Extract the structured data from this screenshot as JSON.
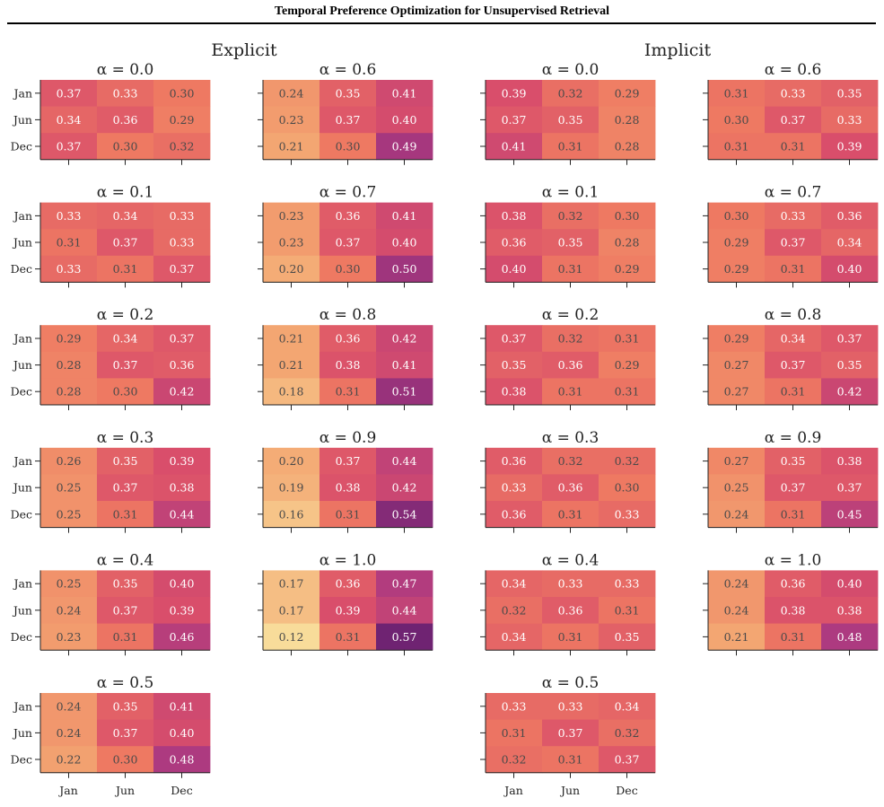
{
  "title": "Temporal Preference Optimization for Unsupervised Retrieval",
  "chart_data": {
    "type": "heatmap",
    "title": "Temporal Preference Optimization for Unsupervised Retrieval",
    "row_labels": [
      "Jan",
      "Jun",
      "Dec"
    ],
    "col_labels": [
      "Jan",
      "Jun",
      "Dec"
    ],
    "colormap": [
      "#f8dc9a",
      "#f3a672",
      "#ee7962",
      "#d94e6b",
      "#ad3a80",
      "#6f2372"
    ],
    "value_range": [
      0.12,
      0.57
    ],
    "groups": [
      {
        "name": "Explicit",
        "panels": [
          {
            "label": "α = 0.0",
            "values": [
              [
                0.37,
                0.33,
                0.3
              ],
              [
                0.34,
                0.36,
                0.29
              ],
              [
                0.37,
                0.3,
                0.32
              ]
            ]
          },
          {
            "label": "α = 0.1",
            "values": [
              [
                0.33,
                0.34,
                0.33
              ],
              [
                0.31,
                0.37,
                0.33
              ],
              [
                0.33,
                0.31,
                0.37
              ]
            ]
          },
          {
            "label": "α = 0.2",
            "values": [
              [
                0.29,
                0.34,
                0.37
              ],
              [
                0.28,
                0.37,
                0.36
              ],
              [
                0.28,
                0.3,
                0.42
              ]
            ]
          },
          {
            "label": "α = 0.3",
            "values": [
              [
                0.26,
                0.35,
                0.39
              ],
              [
                0.25,
                0.37,
                0.38
              ],
              [
                0.25,
                0.31,
                0.44
              ]
            ]
          },
          {
            "label": "α = 0.4",
            "values": [
              [
                0.25,
                0.35,
                0.4
              ],
              [
                0.24,
                0.37,
                0.39
              ],
              [
                0.23,
                0.31,
                0.46
              ]
            ]
          },
          {
            "label": "α = 0.5",
            "values": [
              [
                0.24,
                0.35,
                0.41
              ],
              [
                0.24,
                0.37,
                0.4
              ],
              [
                0.22,
                0.3,
                0.48
              ]
            ]
          },
          {
            "label": "α = 0.6",
            "values": [
              [
                0.24,
                0.35,
                0.41
              ],
              [
                0.23,
                0.37,
                0.4
              ],
              [
                0.21,
                0.3,
                0.49
              ]
            ]
          },
          {
            "label": "α = 0.7",
            "values": [
              [
                0.23,
                0.36,
                0.41
              ],
              [
                0.23,
                0.37,
                0.4
              ],
              [
                0.2,
                0.3,
                0.5
              ]
            ]
          },
          {
            "label": "α = 0.8",
            "values": [
              [
                0.21,
                0.36,
                0.42
              ],
              [
                0.21,
                0.38,
                0.41
              ],
              [
                0.18,
                0.31,
                0.51
              ]
            ]
          },
          {
            "label": "α = 0.9",
            "values": [
              [
                0.2,
                0.37,
                0.44
              ],
              [
                0.19,
                0.38,
                0.42
              ],
              [
                0.16,
                0.31,
                0.54
              ]
            ]
          },
          {
            "label": "α = 1.0",
            "values": [
              [
                0.17,
                0.36,
                0.47
              ],
              [
                0.17,
                0.39,
                0.44
              ],
              [
                0.12,
                0.31,
                0.57
              ]
            ]
          }
        ]
      },
      {
        "name": "Implicit",
        "panels": [
          {
            "label": "α = 0.0",
            "values": [
              [
                0.39,
                0.32,
                0.29
              ],
              [
                0.37,
                0.35,
                0.28
              ],
              [
                0.41,
                0.31,
                0.28
              ]
            ]
          },
          {
            "label": "α = 0.1",
            "values": [
              [
                0.38,
                0.32,
                0.3
              ],
              [
                0.36,
                0.35,
                0.28
              ],
              [
                0.4,
                0.31,
                0.29
              ]
            ]
          },
          {
            "label": "α = 0.2",
            "values": [
              [
                0.37,
                0.32,
                0.31
              ],
              [
                0.35,
                0.36,
                0.29
              ],
              [
                0.38,
                0.31,
                0.31
              ]
            ]
          },
          {
            "label": "α = 0.3",
            "values": [
              [
                0.36,
                0.32,
                0.32
              ],
              [
                0.33,
                0.36,
                0.3
              ],
              [
                0.36,
                0.31,
                0.33
              ]
            ]
          },
          {
            "label": "α = 0.4",
            "values": [
              [
                0.34,
                0.33,
                0.33
              ],
              [
                0.32,
                0.36,
                0.31
              ],
              [
                0.34,
                0.31,
                0.35
              ]
            ]
          },
          {
            "label": "α = 0.5",
            "values": [
              [
                0.33,
                0.33,
                0.34
              ],
              [
                0.31,
                0.37,
                0.32
              ],
              [
                0.32,
                0.31,
                0.37
              ]
            ]
          },
          {
            "label": "α = 0.6",
            "values": [
              [
                0.31,
                0.33,
                0.35
              ],
              [
                0.3,
                0.37,
                0.33
              ],
              [
                0.31,
                0.31,
                0.39
              ]
            ]
          },
          {
            "label": "α = 0.7",
            "values": [
              [
                0.3,
                0.33,
                0.36
              ],
              [
                0.29,
                0.37,
                0.34
              ],
              [
                0.29,
                0.31,
                0.4
              ]
            ]
          },
          {
            "label": "α = 0.8",
            "values": [
              [
                0.29,
                0.34,
                0.37
              ],
              [
                0.27,
                0.37,
                0.35
              ],
              [
                0.27,
                0.31,
                0.42
              ]
            ]
          },
          {
            "label": "α = 0.9",
            "values": [
              [
                0.27,
                0.35,
                0.38
              ],
              [
                0.25,
                0.37,
                0.37
              ],
              [
                0.24,
                0.31,
                0.45
              ]
            ]
          },
          {
            "label": "α = 1.0",
            "values": [
              [
                0.24,
                0.36,
                0.4
              ],
              [
                0.24,
                0.38,
                0.38
              ],
              [
                0.21,
                0.31,
                0.48
              ]
            ]
          }
        ]
      }
    ]
  }
}
